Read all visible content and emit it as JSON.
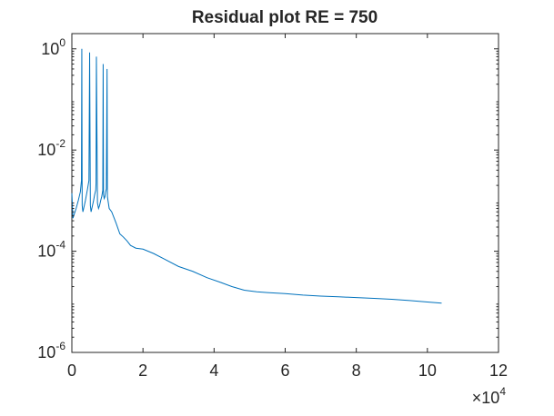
{
  "chart_data": {
    "type": "line",
    "title": "Residual plot RE = 750",
    "xlabel": "",
    "ylabel": "",
    "xlim": [
      0,
      120000
    ],
    "ylim": [
      1e-06,
      2
    ],
    "yscale": "log",
    "grid": false,
    "box": true,
    "x_exponent_label": {
      "base": "×10",
      "exponent": "4"
    },
    "x_ticks": [
      {
        "value": 0,
        "label": "0"
      },
      {
        "value": 20000,
        "label": "2"
      },
      {
        "value": 40000,
        "label": "4"
      },
      {
        "value": 60000,
        "label": "6"
      },
      {
        "value": 80000,
        "label": "8"
      },
      {
        "value": 100000,
        "label": "10"
      },
      {
        "value": 120000,
        "label": "12"
      }
    ],
    "y_ticks": [
      {
        "value": 1,
        "base": "10",
        "exponent": "0"
      },
      {
        "value": 0.01,
        "base": "10",
        "exponent": "-2"
      },
      {
        "value": 0.0001,
        "base": "10",
        "exponent": "-4"
      },
      {
        "value": 1e-06,
        "base": "10",
        "exponent": "-6"
      }
    ],
    "series": [
      {
        "color": "#0072BD",
        "x": [
          0,
          300,
          700,
          1200,
          1800,
          2400,
          2700,
          2800,
          2900,
          3100,
          3500,
          3800,
          4100,
          4400,
          4800,
          5000,
          5200,
          5400,
          5800,
          6100,
          6400,
          6700,
          6800,
          6900,
          7200,
          7500,
          7800,
          8100,
          8400,
          8700,
          8800,
          8900,
          9100,
          9300,
          9500,
          9700,
          9900,
          10000,
          10500,
          11200,
          11900,
          12500,
          13500,
          14500,
          15500,
          16500,
          18000,
          20000,
          23000,
          26000,
          30000,
          34000,
          38000,
          42000,
          45000,
          48500,
          52000,
          55000,
          60000,
          65000,
          70000,
          75000,
          80000,
          85000,
          90000,
          95000,
          100000,
          104000
        ],
        "y": [
          0.0014,
          0.00045,
          0.00055,
          0.0007,
          0.001,
          0.0015,
          0.0025,
          1.0,
          0.0008,
          0.0006,
          0.0008,
          0.001,
          0.0013,
          0.0017,
          0.0025,
          0.85,
          0.0008,
          0.0006,
          0.0008,
          0.001,
          0.0013,
          0.0016,
          0.0022,
          0.7,
          0.0009,
          0.0007,
          0.0008,
          0.001,
          0.0012,
          0.0016,
          0.5,
          0.0013,
          0.0011,
          0.0012,
          0.0015,
          0.0017,
          0.4,
          0.0012,
          0.0007,
          0.0006,
          0.00045,
          0.00035,
          0.00022,
          0.00019,
          0.00016,
          0.00013,
          0.000115,
          0.00011,
          9e-05,
          7e-05,
          5e-05,
          4e-05,
          3e-05,
          2.4e-05,
          2e-05,
          1.7e-05,
          1.58e-05,
          1.52e-05,
          1.45e-05,
          1.36e-05,
          1.3e-05,
          1.26e-05,
          1.21e-05,
          1.17e-05,
          1.12e-05,
          1.06e-05,
          9.9e-06,
          9.4e-06
        ]
      }
    ]
  }
}
